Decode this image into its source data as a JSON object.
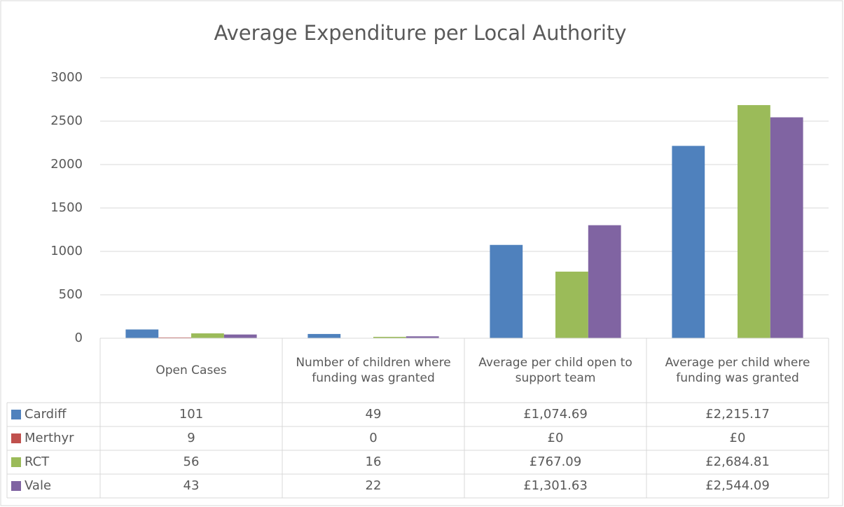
{
  "chart_data": {
    "type": "bar",
    "title": "Average Expenditure per Local Authority",
    "categories": [
      "Open Cases",
      "Number of children where funding was granted",
      "Average per child open to support team",
      "Average per child where funding was granted"
    ],
    "series": [
      {
        "name": "Cardiff",
        "color": "#4f81bd",
        "values": [
          101,
          49,
          1074.69,
          2215.17
        ],
        "value_labels": [
          "101",
          "49",
          "£1,074.69",
          "£2,215.17"
        ]
      },
      {
        "name": "Merthyr",
        "color": "#c0504d",
        "values": [
          9,
          0,
          0,
          0
        ],
        "value_labels": [
          "9",
          "0",
          "£0",
          "£0"
        ]
      },
      {
        "name": "RCT",
        "color": "#9bbb59",
        "values": [
          56,
          16,
          767.09,
          2684.81
        ],
        "value_labels": [
          "56",
          "16",
          "£767.09",
          "£2,684.81"
        ]
      },
      {
        "name": "Vale",
        "color": "#8064a2",
        "values": [
          43,
          22,
          1301.63,
          2544.09
        ],
        "value_labels": [
          "43",
          "22",
          "£1,301.63",
          "£2,544.09"
        ]
      }
    ],
    "ylim": [
      0,
      3000
    ],
    "yticks": [
      0,
      500,
      1000,
      1500,
      2000,
      2500,
      3000
    ],
    "grid": true
  }
}
